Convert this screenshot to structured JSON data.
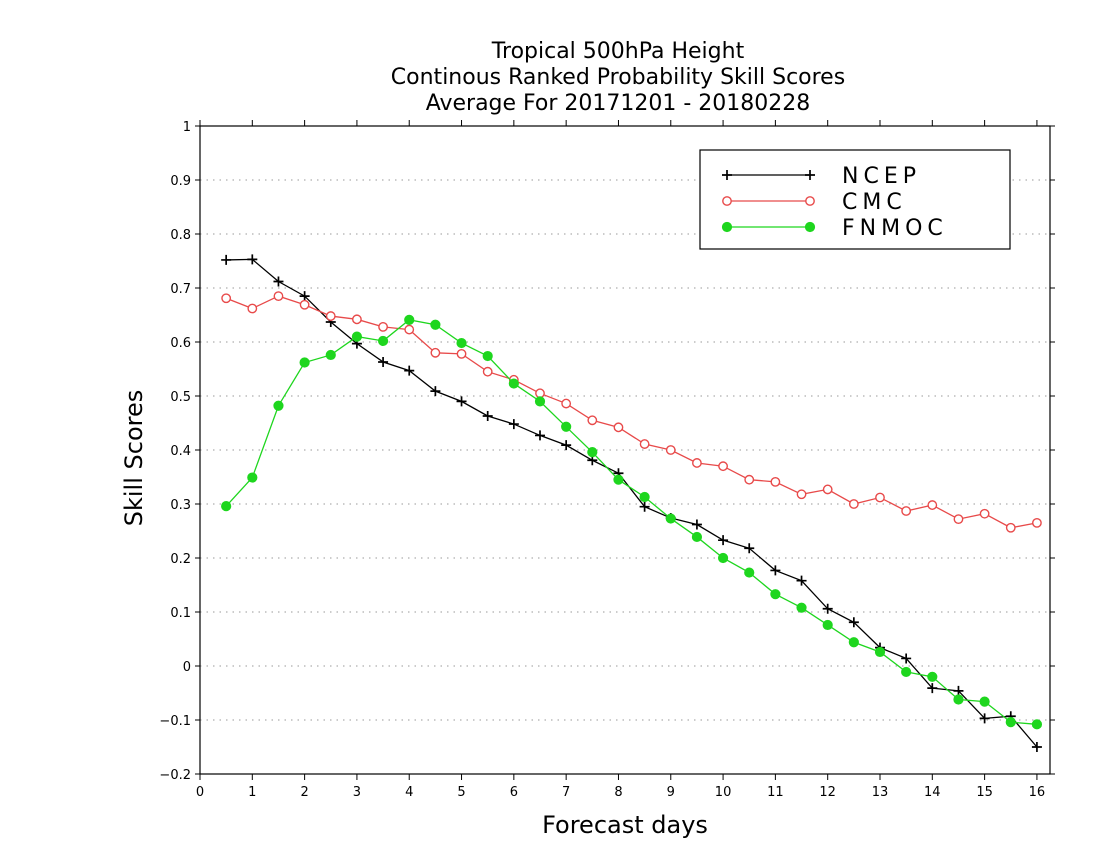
{
  "chart_data": {
    "type": "line",
    "title_lines": [
      "Tropical 500hPa Height",
      "Continous Ranked Probability Skill Scores",
      "Average For 20171201 - 20180228"
    ],
    "xlabel": "Forecast days",
    "ylabel": "Skill Scores",
    "xlim": [
      0,
      16.25
    ],
    "ylim": [
      -0.2,
      1
    ],
    "x_ticks": [
      0,
      1,
      2,
      3,
      4,
      5,
      6,
      7,
      8,
      9,
      10,
      11,
      12,
      13,
      14,
      15,
      16
    ],
    "y_ticks": [
      -0.2,
      -0.1,
      0,
      0.1,
      0.2,
      0.3,
      0.4,
      0.5,
      0.6,
      0.7,
      0.8,
      0.9,
      1
    ],
    "y_tick_labels": [
      "−0.2",
      "−0.1",
      "0",
      "0.1",
      "0.2",
      "0.3",
      "0.4",
      "0.5",
      "0.6",
      "0.7",
      "0.8",
      "0.9",
      "1"
    ],
    "grid": "horizontal dotted",
    "legend_position": "top-right",
    "x": [
      0.5,
      1,
      1.5,
      2,
      2.5,
      3,
      3.5,
      4,
      4.5,
      5,
      5.5,
      6,
      6.5,
      7,
      7.5,
      8,
      8.5,
      9,
      9.5,
      10,
      10.5,
      11,
      11.5,
      12,
      12.5,
      13,
      13.5,
      14,
      14.5,
      15,
      15.5,
      16
    ],
    "series": [
      {
        "name": "NCEP",
        "color": "#000000",
        "marker": "plus",
        "values": [
          0.752,
          0.753,
          0.712,
          0.685,
          0.637,
          0.597,
          0.563,
          0.547,
          0.509,
          0.49,
          0.463,
          0.448,
          0.427,
          0.409,
          0.381,
          0.357,
          0.295,
          0.274,
          0.262,
          0.233,
          0.218,
          0.177,
          0.158,
          0.106,
          0.081,
          0.034,
          0.014,
          -0.041,
          -0.046,
          -0.097,
          -0.093,
          -0.15
        ]
      },
      {
        "name": "CMC",
        "color": "#e84a4a",
        "marker": "open-circle",
        "values": [
          0.681,
          0.662,
          0.685,
          0.669,
          0.648,
          0.642,
          0.628,
          0.623,
          0.58,
          0.578,
          0.545,
          0.53,
          0.505,
          0.486,
          0.455,
          0.442,
          0.411,
          0.4,
          0.376,
          0.37,
          0.345,
          0.341,
          0.318,
          0.327,
          0.3,
          0.312,
          0.287,
          0.298,
          0.272,
          0.282,
          0.256,
          0.265
        ]
      },
      {
        "name": "FNMOC",
        "color": "#1ed61e",
        "marker": "filled-circle",
        "values": [
          0.296,
          0.349,
          0.482,
          0.562,
          0.576,
          0.61,
          0.602,
          0.641,
          0.632,
          0.598,
          0.574,
          0.523,
          0.49,
          0.443,
          0.396,
          0.345,
          0.313,
          0.273,
          0.239,
          0.2,
          0.173,
          0.133,
          0.108,
          0.076,
          0.044,
          0.026,
          -0.011,
          -0.02,
          -0.062,
          -0.066,
          -0.104,
          -0.108
        ]
      }
    ]
  }
}
